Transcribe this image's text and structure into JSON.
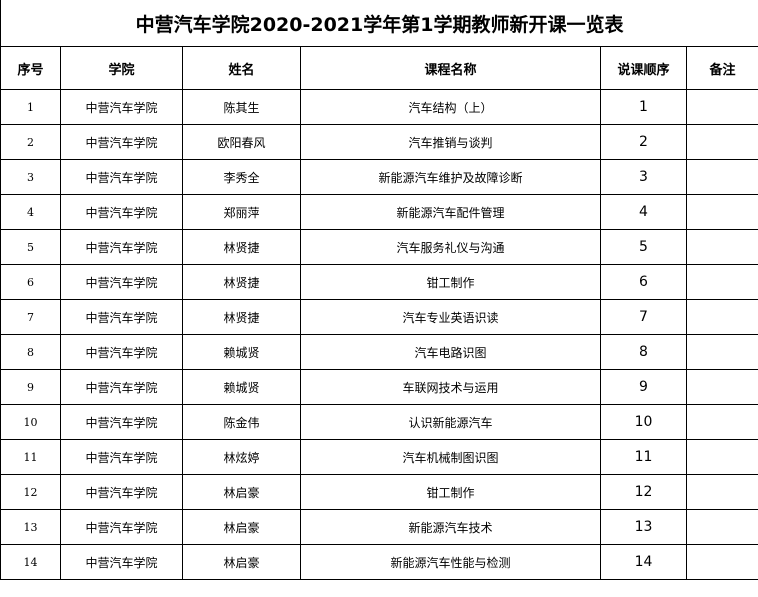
{
  "title": "中营汽车学院2020-2021学年第1学期教师新开课一览表",
  "headers": [
    "序号",
    "学院",
    "姓名",
    "课程名称",
    "说课顺序",
    "备注"
  ],
  "rows": [
    {
      "no": "1",
      "college": "中营汽车学院",
      "name": "陈其生",
      "course": "汽车结构（上）",
      "order": "1",
      "remark": ""
    },
    {
      "no": "2",
      "college": "中营汽车学院",
      "name": "欧阳春风",
      "course": "汽车推销与谈判",
      "order": "2",
      "remark": ""
    },
    {
      "no": "3",
      "college": "中营汽车学院",
      "name": "李秀全",
      "course": "新能源汽车维护及故障诊断",
      "order": "3",
      "remark": ""
    },
    {
      "no": "4",
      "college": "中营汽车学院",
      "name": "郑丽萍",
      "course": "新能源汽车配件管理",
      "order": "4",
      "remark": ""
    },
    {
      "no": "5",
      "college": "中营汽车学院",
      "name": "林贤捷",
      "course": "汽车服务礼仪与沟通",
      "order": "5",
      "remark": ""
    },
    {
      "no": "6",
      "college": "中营汽车学院",
      "name": "林贤捷",
      "course": "钳工制作",
      "order": "6",
      "remark": ""
    },
    {
      "no": "7",
      "college": "中营汽车学院",
      "name": "林贤捷",
      "course": "汽车专业英语识读",
      "order": "7",
      "remark": ""
    },
    {
      "no": "8",
      "college": "中营汽车学院",
      "name": "赖城贤",
      "course": "汽车电路识图",
      "order": "8",
      "remark": ""
    },
    {
      "no": "9",
      "college": "中营汽车学院",
      "name": "赖城贤",
      "course": "车联网技术与运用",
      "order": "9",
      "remark": ""
    },
    {
      "no": "10",
      "college": "中营汽车学院",
      "name": "陈金伟",
      "course": "认识新能源汽车",
      "order": "10",
      "remark": ""
    },
    {
      "no": "11",
      "college": "中营汽车学院",
      "name": "林炫婷",
      "course": "汽车机械制图识图",
      "order": "11",
      "remark": ""
    },
    {
      "no": "12",
      "college": "中营汽车学院",
      "name": "林启豪",
      "course": "钳工制作",
      "order": "12",
      "remark": ""
    },
    {
      "no": "13",
      "college": "中营汽车学院",
      "name": "林启豪",
      "course": "新能源汽车技术",
      "order": "13",
      "remark": ""
    },
    {
      "no": "14",
      "college": "中营汽车学院",
      "name": "林启豪",
      "course": "新能源汽车性能与检测",
      "order": "14",
      "remark": ""
    }
  ]
}
